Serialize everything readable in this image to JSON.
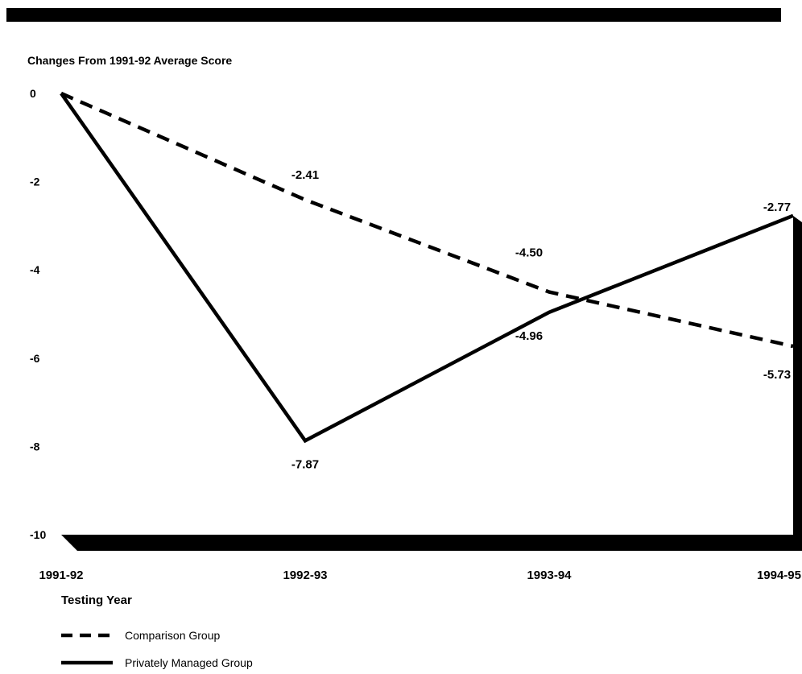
{
  "chart_data": {
    "type": "line",
    "title": "Changes From 1991-92 Average Score",
    "xlabel": "Testing Year",
    "ylabel": "",
    "categories": [
      "1991-92",
      "1992-93",
      "1993-94",
      "1994-95"
    ],
    "ylim": [
      -10,
      0
    ],
    "yticks": [
      "0",
      "-2",
      "-4",
      "-6",
      "-8",
      "-10"
    ],
    "series": [
      {
        "name": "Comparison Group",
        "style": "dashed",
        "values": [
          0,
          -2.41,
          -4.5,
          -5.73
        ],
        "labels": [
          "",
          "-2.41",
          "-4.50",
          "-5.73"
        ]
      },
      {
        "name": "Privately Managed Group",
        "style": "solid",
        "values": [
          0,
          -7.87,
          -4.96,
          -2.77
        ],
        "labels": [
          "",
          "-7.87",
          "-4.96",
          "-2.77"
        ]
      }
    ],
    "legend_position": "bottom-left",
    "colors": {
      "line": "#000000",
      "background": "#ffffff"
    }
  }
}
